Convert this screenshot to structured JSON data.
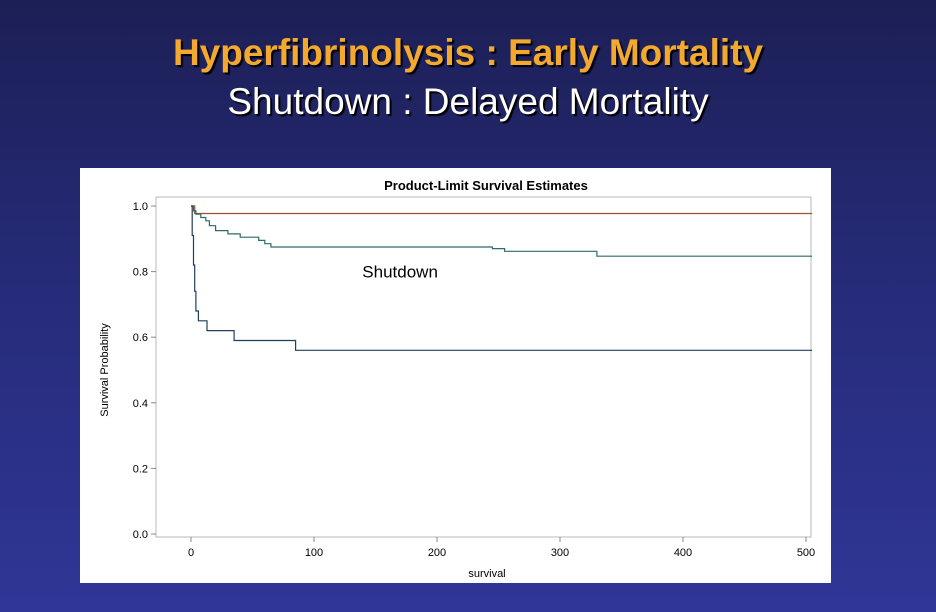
{
  "slide": {
    "title_line1": "Hyperfibrinolysis : Early Mortality",
    "title_line2": "Shutdown : Delayed Mortality",
    "title1_color": "#f2a92d",
    "title2_color": "#ffffff"
  },
  "chart_data": {
    "type": "line",
    "step": true,
    "title": "Product-Limit Survival Estimates",
    "xlabel": "survival",
    "ylabel": "Survival Probability",
    "xlim": [
      0,
      500
    ],
    "ylim": [
      0,
      1
    ],
    "xticks": [
      0,
      100,
      200,
      300,
      400,
      500
    ],
    "yticks": [
      0.0,
      0.2,
      0.4,
      0.6,
      0.8,
      1.0
    ],
    "ytick_labels": [
      "0.0",
      "0.2",
      "0.4",
      "0.6",
      "0.8",
      "1.0"
    ],
    "grid": false,
    "annotations": [
      {
        "text": "Shutdown",
        "x": 170,
        "y": 0.8
      }
    ],
    "series": [
      {
        "color": "#a0522d",
        "points": [
          [
            0,
            1.0
          ],
          [
            3,
            1.0
          ],
          [
            3,
            0.977
          ],
          [
            505,
            0.977
          ]
        ]
      },
      {
        "color": "#2e6b6b",
        "points": [
          [
            0,
            1.0
          ],
          [
            2,
            1.0
          ],
          [
            2,
            0.985
          ],
          [
            4,
            0.985
          ],
          [
            4,
            0.975
          ],
          [
            8,
            0.975
          ],
          [
            8,
            0.965
          ],
          [
            12,
            0.965
          ],
          [
            12,
            0.955
          ],
          [
            15,
            0.955
          ],
          [
            15,
            0.94
          ],
          [
            20,
            0.94
          ],
          [
            20,
            0.925
          ],
          [
            30,
            0.925
          ],
          [
            30,
            0.915
          ],
          [
            40,
            0.915
          ],
          [
            40,
            0.905
          ],
          [
            55,
            0.905
          ],
          [
            55,
            0.895
          ],
          [
            60,
            0.895
          ],
          [
            60,
            0.885
          ],
          [
            65,
            0.885
          ],
          [
            65,
            0.875
          ],
          [
            245,
            0.875
          ],
          [
            245,
            0.87
          ],
          [
            255,
            0.87
          ],
          [
            255,
            0.862
          ],
          [
            330,
            0.862
          ],
          [
            330,
            0.847
          ],
          [
            505,
            0.847
          ]
        ]
      },
      {
        "color": "#1f3f5f",
        "points": [
          [
            0,
            1.0
          ],
          [
            1,
            1.0
          ],
          [
            1,
            0.91
          ],
          [
            2,
            0.91
          ],
          [
            2,
            0.82
          ],
          [
            3,
            0.82
          ],
          [
            3,
            0.74
          ],
          [
            4,
            0.74
          ],
          [
            4,
            0.68
          ],
          [
            6,
            0.68
          ],
          [
            6,
            0.65
          ],
          [
            13,
            0.65
          ],
          [
            13,
            0.62
          ],
          [
            35,
            0.62
          ],
          [
            35,
            0.59
          ],
          [
            85,
            0.59
          ],
          [
            85,
            0.56
          ],
          [
            505,
            0.56
          ]
        ]
      }
    ]
  }
}
